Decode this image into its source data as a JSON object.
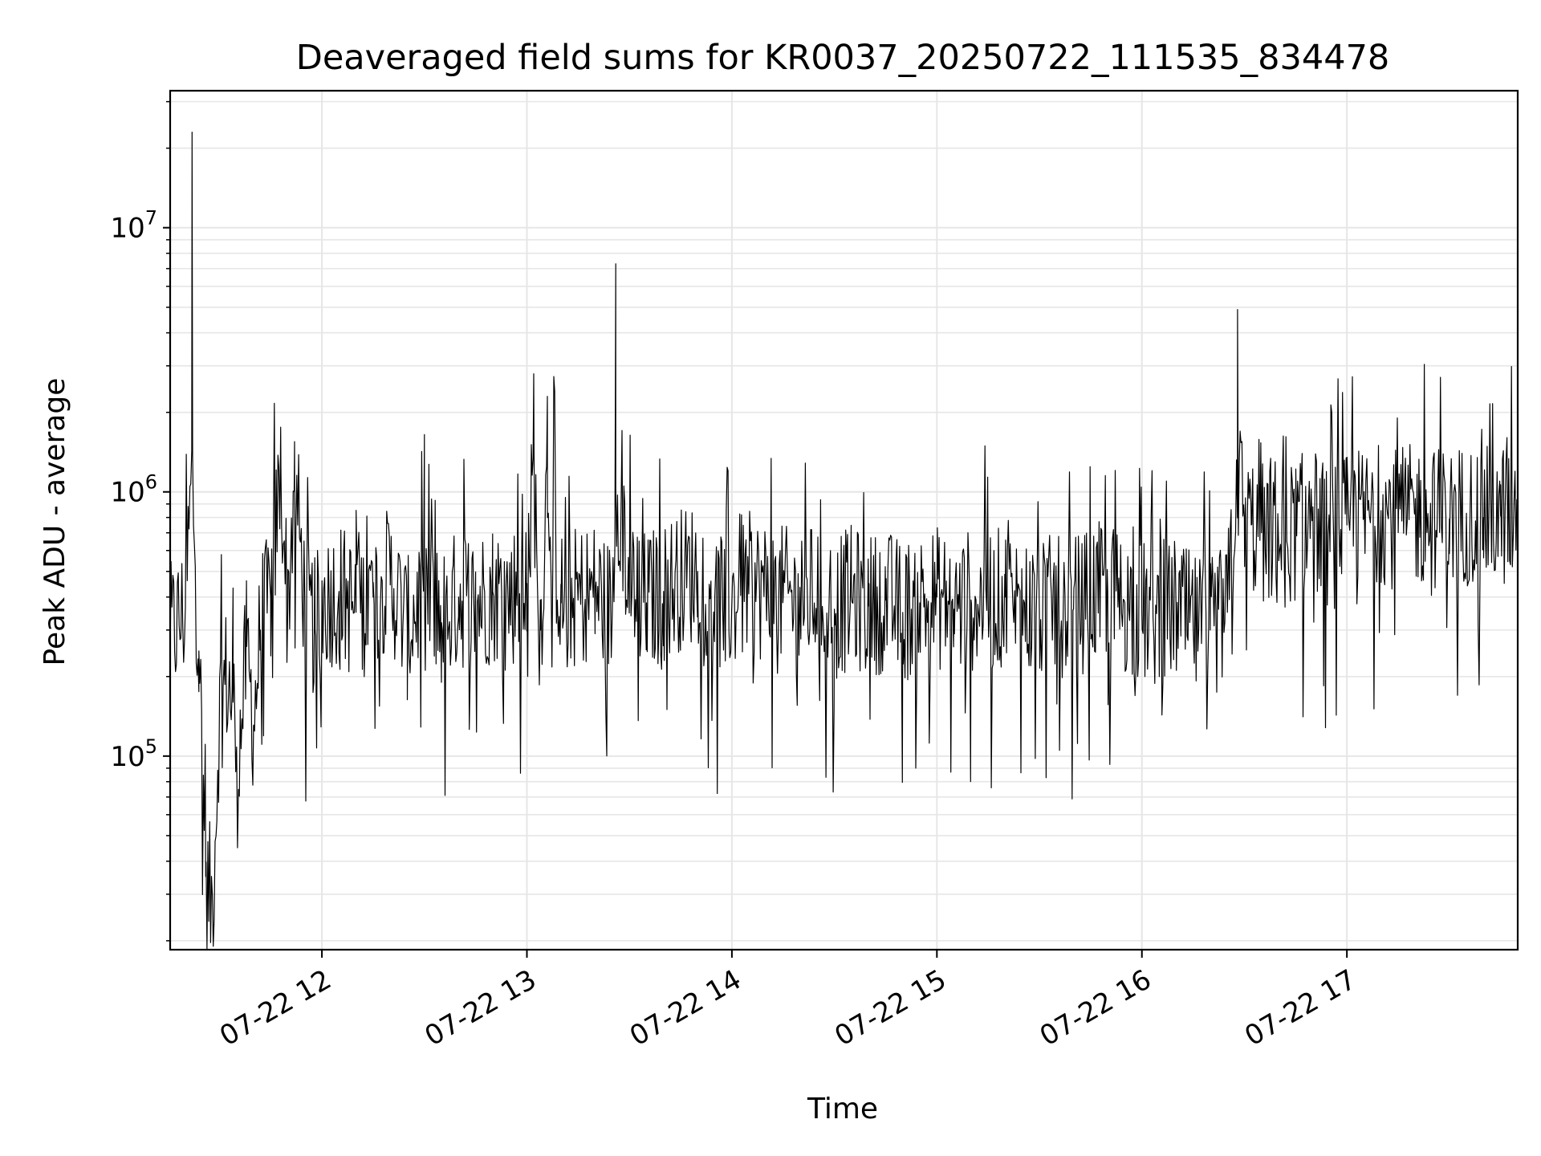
{
  "chart_data": {
    "type": "line",
    "title": "Deaveraged field sums for KR0037_20250722_111535_834478",
    "xlabel": "Time",
    "ylabel": "Peak ADU - average",
    "y_scale": "log",
    "ylim": [
      18500,
      33000000
    ],
    "xlim": [
      "2025-07-22T11:15:35",
      "2025-07-22T17:50:00"
    ],
    "x_ticks": [
      {
        "label": "07-22 12",
        "value": "2025-07-22T12:00:00"
      },
      {
        "label": "07-22 13",
        "value": "2025-07-22T13:00:00"
      },
      {
        "label": "07-22 14",
        "value": "2025-07-22T14:00:00"
      },
      {
        "label": "07-22 15",
        "value": "2025-07-22T15:00:00"
      },
      {
        "label": "07-22 16",
        "value": "2025-07-22T16:00:00"
      },
      {
        "label": "07-22 17",
        "value": "2025-07-22T17:00:00"
      }
    ],
    "y_ticks": [
      {
        "base": "10",
        "exp": "5",
        "value": 100000
      },
      {
        "base": "10",
        "exp": "6",
        "value": 1000000
      },
      {
        "base": "10",
        "exp": "7",
        "value": 10000000
      }
    ],
    "grid": true,
    "line_color": "#000000",
    "grid_color": "#e6e6e6",
    "series": [
      {
        "x": [
          "11:15",
          "11:20",
          "11:22",
          "11:24",
          "11:26",
          "11:28",
          "11:30",
          "11:32",
          "11:34",
          "11:36",
          "11:38",
          "11:40",
          "11:42",
          "11:45",
          "11:48",
          "11:50",
          "11:52",
          "11:55",
          "11:58",
          "12:00",
          "12:05",
          "12:10",
          "12:15",
          "12:20",
          "12:25",
          "12:30",
          "12:35",
          "12:40",
          "12:45",
          "12:50",
          "12:55",
          "13:00",
          "13:02",
          "13:04",
          "13:06",
          "13:10",
          "13:15",
          "13:20",
          "13:25",
          "13:26",
          "13:30",
          "13:35",
          "13:40",
          "13:45",
          "13:50",
          "13:55",
          "14:00",
          "14:05",
          "14:10",
          "14:15",
          "14:20",
          "14:25",
          "14:30",
          "14:35",
          "14:40",
          "14:45",
          "14:50",
          "14:55",
          "15:00",
          "15:05",
          "15:10",
          "15:15",
          "15:20",
          "15:25",
          "15:30",
          "15:35",
          "15:40",
          "15:45",
          "15:50",
          "15:55",
          "16:00",
          "16:05",
          "16:10",
          "16:15",
          "16:20",
          "16:25",
          "16:28",
          "16:30",
          "16:32",
          "16:35",
          "16:40",
          "16:45",
          "16:50",
          "16:55",
          "17:00",
          "17:05",
          "17:10",
          "17:15",
          "17:20",
          "17:25",
          "17:30",
          "17:35",
          "17:40",
          "17:45",
          "17:50"
        ],
        "y": [
          280000,
          350000,
          23000000,
          250000,
          35000,
          27000,
          150000,
          200000,
          160000,
          110000,
          260000,
          130000,
          300000,
          400000,
          1250000,
          350000,
          1550000,
          380000,
          300000,
          380000,
          420000,
          350000,
          400000,
          480000,
          300000,
          440000,
          320000,
          400000,
          380000,
          420000,
          400000,
          450000,
          2800000,
          300000,
          2300000,
          380000,
          400000,
          420000,
          350000,
          7300000,
          450000,
          380000,
          420000,
          470000,
          500000,
          400000,
          380000,
          450000,
          420000,
          400000,
          380000,
          420000,
          360000,
          400000,
          370000,
          390000,
          350000,
          380000,
          400000,
          360000,
          390000,
          380000,
          400000,
          370000,
          350000,
          380000,
          360000,
          400000,
          420000,
          380000,
          350000,
          330000,
          360000,
          310000,
          300000,
          350000,
          4900000,
          800000,
          750000,
          700000,
          650000,
          720000,
          800000,
          650000,
          750000,
          800000,
          850000,
          780000,
          820000,
          800000,
          790000,
          830000,
          800000,
          810000,
          820000
        ]
      }
    ]
  }
}
